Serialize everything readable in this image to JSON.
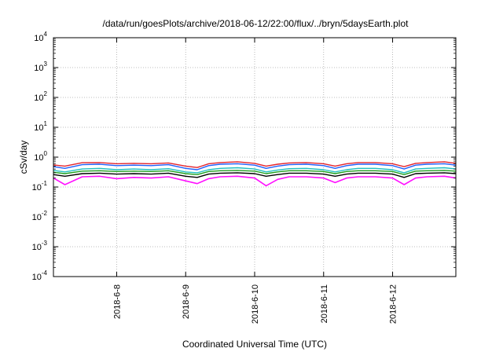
{
  "chart_data": {
    "type": "area",
    "title": "/data/run/goesPlots/archive/2018-06-12/22:00/flux/../bryn/5daysEarth.plot",
    "xlabel": "Coordinated Universal Time (UTC)",
    "ylabel": "cSv/day",
    "yscale": "log",
    "ylim": [
      0.0001,
      10000
    ],
    "xlim": [
      "2018-06-07T02:00",
      "2018-06-12T22:00"
    ],
    "grid": true,
    "x_ticks": [
      "2018-6-8",
      "2018-6-9",
      "2018-6-10",
      "2018-6-11",
      "2018-6-12"
    ],
    "x_tick_values": [
      "2018-06-08T00:00",
      "2018-06-09T00:00",
      "2018-06-10T00:00",
      "2018-06-11T00:00",
      "2018-06-12T00:00"
    ],
    "y_ticks": [
      {
        "base": "10",
        "exp": "-4",
        "value": 0.0001
      },
      {
        "base": "10",
        "exp": "-3",
        "value": 0.001
      },
      {
        "base": "10",
        "exp": "-2",
        "value": 0.01
      },
      {
        "base": "10",
        "exp": "-1",
        "value": 0.1
      },
      {
        "base": "10",
        "exp": "0",
        "value": 1
      },
      {
        "base": "10",
        "exp": "1",
        "value": 10
      },
      {
        "base": "10",
        "exp": "2",
        "value": 100
      },
      {
        "base": "10",
        "exp": "3",
        "value": 1000
      },
      {
        "base": "10",
        "exp": "4",
        "value": 10000
      }
    ],
    "x": [
      "2018-06-07T02:00",
      "2018-06-07T06:00",
      "2018-06-07T12:00",
      "2018-06-07T18:00",
      "2018-06-08T00:00",
      "2018-06-08T06:00",
      "2018-06-08T12:00",
      "2018-06-08T18:00",
      "2018-06-09T00:00",
      "2018-06-09T04:00",
      "2018-06-09T08:00",
      "2018-06-09T12:00",
      "2018-06-09T18:00",
      "2018-06-10T00:00",
      "2018-06-10T04:00",
      "2018-06-10T08:00",
      "2018-06-10T12:00",
      "2018-06-10T18:00",
      "2018-06-11T00:00",
      "2018-06-11T04:00",
      "2018-06-11T08:00",
      "2018-06-11T12:00",
      "2018-06-11T18:00",
      "2018-06-12T00:00",
      "2018-06-12T04:00",
      "2018-06-12T08:00",
      "2018-06-12T12:00",
      "2018-06-12T18:00",
      "2018-06-12T22:00"
    ],
    "series": [
      {
        "color": "#e4242c",
        "values": [
          0.55,
          0.5,
          0.65,
          0.66,
          0.6,
          0.62,
          0.6,
          0.64,
          0.5,
          0.45,
          0.6,
          0.66,
          0.7,
          0.62,
          0.5,
          0.58,
          0.64,
          0.66,
          0.6,
          0.5,
          0.6,
          0.66,
          0.66,
          0.6,
          0.48,
          0.62,
          0.66,
          0.7,
          0.62
        ]
      },
      {
        "color": "#2060ff",
        "values": [
          0.48,
          0.42,
          0.56,
          0.58,
          0.52,
          0.54,
          0.52,
          0.56,
          0.42,
          0.38,
          0.52,
          0.58,
          0.6,
          0.54,
          0.42,
          0.5,
          0.56,
          0.58,
          0.52,
          0.42,
          0.52,
          0.58,
          0.58,
          0.52,
          0.4,
          0.54,
          0.58,
          0.6,
          0.54
        ]
      },
      {
        "color": "#20c0c0",
        "values": [
          0.36,
          0.32,
          0.4,
          0.42,
          0.38,
          0.4,
          0.38,
          0.41,
          0.32,
          0.3,
          0.38,
          0.42,
          0.44,
          0.4,
          0.32,
          0.37,
          0.41,
          0.42,
          0.38,
          0.32,
          0.38,
          0.42,
          0.42,
          0.38,
          0.3,
          0.4,
          0.42,
          0.44,
          0.4
        ]
      },
      {
        "color": "#20a020",
        "values": [
          0.31,
          0.28,
          0.34,
          0.35,
          0.33,
          0.34,
          0.33,
          0.35,
          0.28,
          0.26,
          0.33,
          0.35,
          0.36,
          0.34,
          0.28,
          0.32,
          0.35,
          0.35,
          0.33,
          0.28,
          0.33,
          0.35,
          0.35,
          0.33,
          0.26,
          0.34,
          0.35,
          0.36,
          0.34
        ]
      },
      {
        "color": "#000000",
        "values": [
          0.26,
          0.23,
          0.28,
          0.29,
          0.27,
          0.28,
          0.27,
          0.29,
          0.23,
          0.21,
          0.27,
          0.29,
          0.3,
          0.28,
          0.23,
          0.26,
          0.29,
          0.29,
          0.27,
          0.23,
          0.27,
          0.29,
          0.29,
          0.27,
          0.21,
          0.28,
          0.29,
          0.3,
          0.28
        ]
      },
      {
        "color": "#ff10ff",
        "values": [
          0.2,
          0.12,
          0.22,
          0.23,
          0.19,
          0.21,
          0.2,
          0.22,
          0.16,
          0.13,
          0.19,
          0.22,
          0.23,
          0.2,
          0.11,
          0.18,
          0.22,
          0.22,
          0.2,
          0.14,
          0.2,
          0.22,
          0.22,
          0.2,
          0.12,
          0.2,
          0.22,
          0.23,
          0.2
        ]
      }
    ]
  }
}
